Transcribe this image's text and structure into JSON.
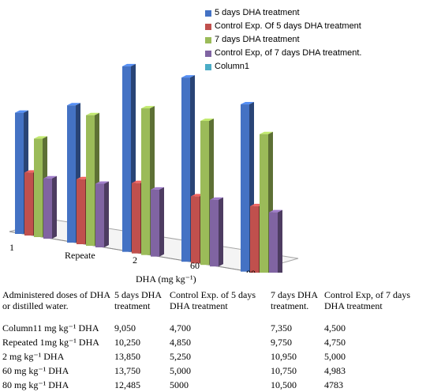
{
  "chart_data": {
    "type": "bar",
    "title": "",
    "xlabel": "DHA (mg kg⁻¹)",
    "ylabel": "",
    "categories": [
      "1",
      "Repeate",
      "2",
      "60",
      "80"
    ],
    "series": [
      {
        "name": "5 days DHA treatment",
        "color": "#4472C4",
        "values": [
          9050,
          10250,
          13850,
          13750,
          12485
        ]
      },
      {
        "name": "Control Exp. Of 5 days DHA treatment",
        "color": "#C0504D",
        "values": [
          4700,
          4850,
          5250,
          5000,
          5000
        ]
      },
      {
        "name": "7 days DHA treatment",
        "color": "#9BBB59",
        "values": [
          7350,
          9750,
          10950,
          10750,
          10500
        ]
      },
      {
        "name": "Control Exp, of 7 days DHA treatment.",
        "color": "#8064A2",
        "values": [
          4500,
          4750,
          5000,
          4983,
          4783
        ]
      },
      {
        "name": "Column1",
        "color": "#4BACC6",
        "values": [
          null,
          null,
          null,
          null,
          null
        ]
      }
    ],
    "grid": false,
    "legend_position": "top-right"
  },
  "table": {
    "headers": [
      "Administered doses of DHA or distilled water.",
      "5 days DHA treatment",
      "Control Exp. of 5 days DHA treatment",
      "7 days DHA treatment.",
      "Control Exp, of 7 days DHA treatment"
    ],
    "rows": [
      [
        "Column11 mg kg⁻¹ DHA",
        "9,050",
        "4,700",
        "7,350",
        "4,500"
      ],
      [
        "Repeated 1mg kg⁻¹ DHA",
        "10,250",
        "4,850",
        "9,750",
        "4,750"
      ],
      [
        "2 mg kg⁻¹ DHA",
        "13,850",
        "5,250",
        "10,950",
        "5,000"
      ],
      [
        "60 mg kg⁻¹ DHA",
        "13,750",
        "5,000",
        "10,750",
        "4,983"
      ],
      [
        "80 mg kg⁻¹ DHA",
        "12,485",
        "5000",
        "10,500",
        "4783"
      ]
    ]
  }
}
